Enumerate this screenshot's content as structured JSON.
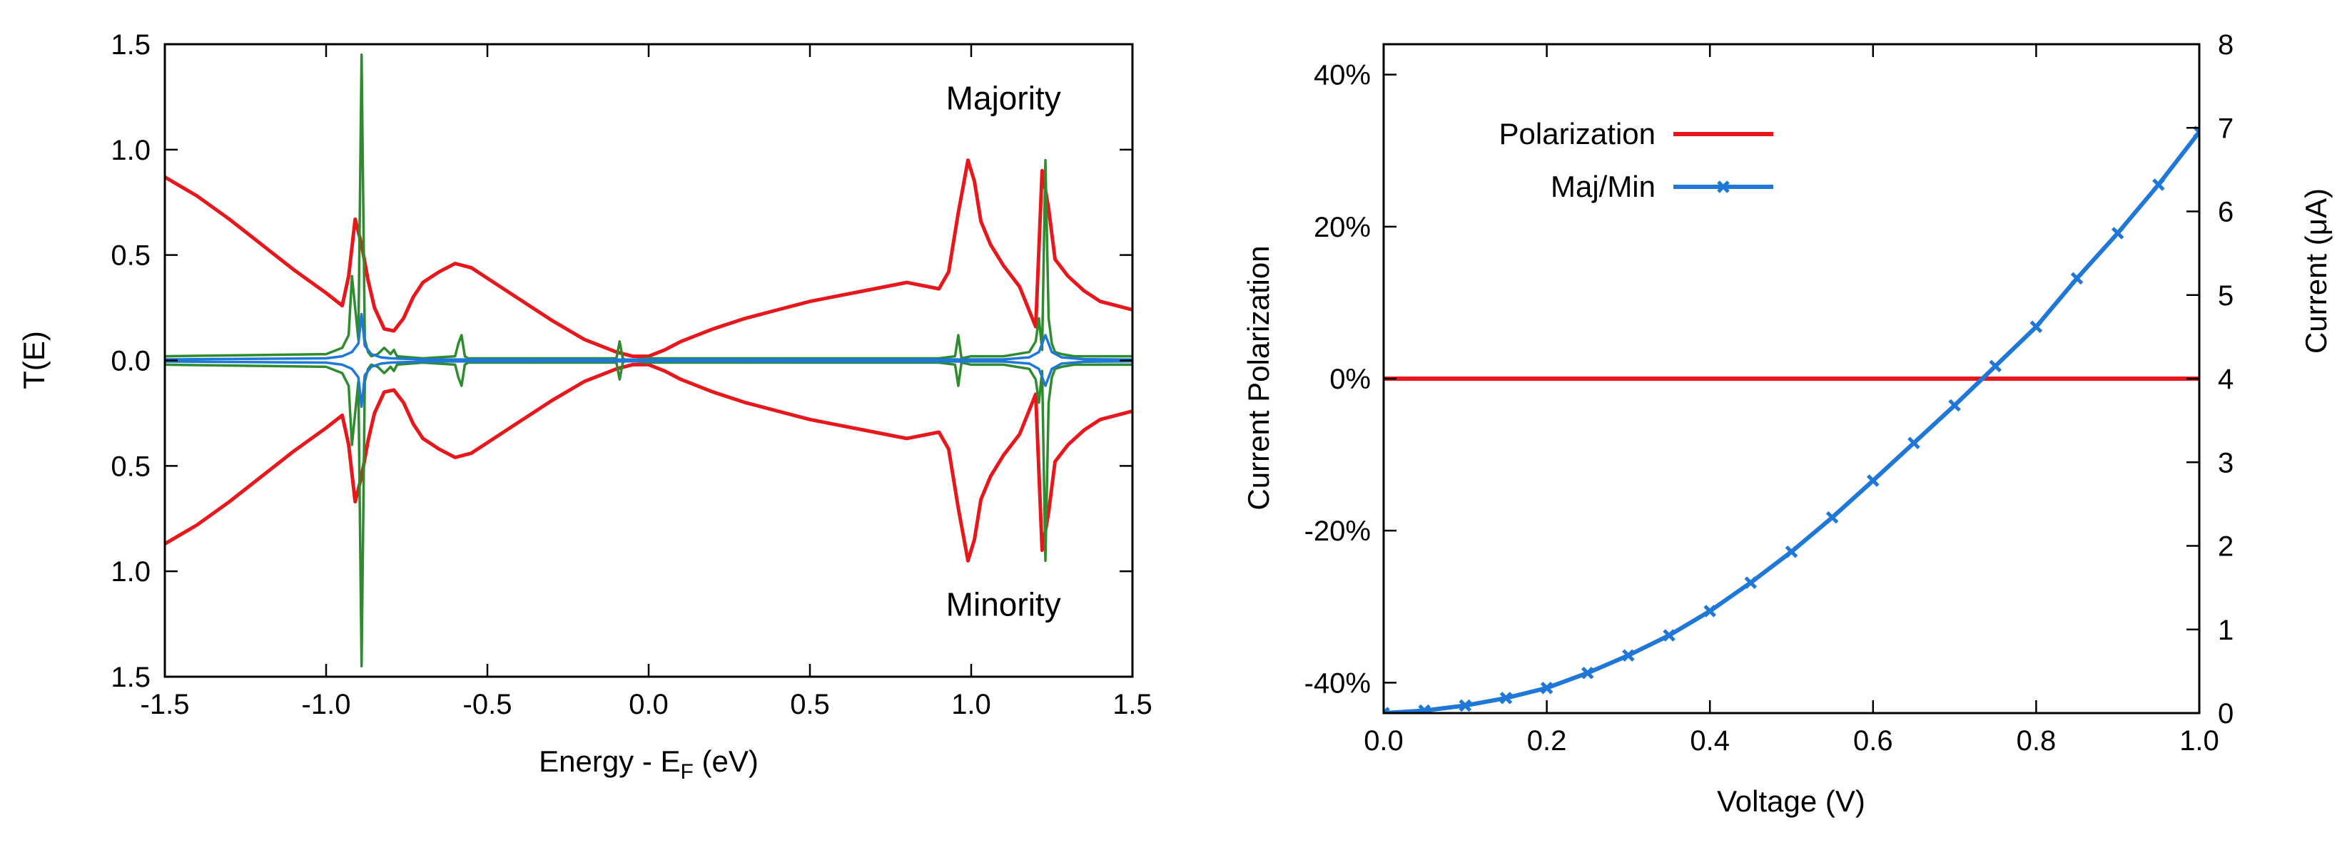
{
  "chart_data": [
    {
      "type": "line",
      "title": "",
      "xlabel_main": "Energy - E",
      "xlabel_sub": "F",
      "xlabel_tail": " (eV)",
      "ylabel": "T(E)",
      "xlim": [
        -1.5,
        1.5
      ],
      "ylim": [
        -1.5,
        1.5
      ],
      "x_ticks": [
        "-1.5",
        "-1.0",
        "-0.5",
        "0.0",
        "0.5",
        "1.0",
        "1.5"
      ],
      "y_ticks": [
        {
          "v": 1.5,
          "label": "1.5"
        },
        {
          "v": 1.0,
          "label": "1.0"
        },
        {
          "v": 0.5,
          "label": "0.5"
        },
        {
          "v": 0.0,
          "label": "0.0"
        },
        {
          "v": -0.5,
          "label": "0.5"
        },
        {
          "v": -1.0,
          "label": "1.0"
        },
        {
          "v": -1.5,
          "label": "1.5"
        }
      ],
      "annotations": [
        {
          "text": "Majority",
          "x": 1.1,
          "y": 1.19
        },
        {
          "text": "Minority",
          "x": 1.1,
          "y": -1.21
        }
      ],
      "grid": false,
      "series": [
        {
          "color": "#e8171b",
          "mirror": true,
          "x": [
            -1.5,
            -1.4,
            -1.3,
            -1.2,
            -1.1,
            -1.0,
            -0.95,
            -0.93,
            -0.91,
            -0.89,
            -0.87,
            -0.85,
            -0.82,
            -0.79,
            -0.76,
            -0.73,
            -0.7,
            -0.65,
            -0.6,
            -0.55,
            -0.5,
            -0.4,
            -0.3,
            -0.2,
            -0.1,
            -0.05,
            0.0,
            0.05,
            0.1,
            0.2,
            0.3,
            0.4,
            0.5,
            0.6,
            0.7,
            0.8,
            0.9,
            0.93,
            0.96,
            0.99,
            1.01,
            1.03,
            1.06,
            1.1,
            1.15,
            1.2,
            1.22,
            1.24,
            1.26,
            1.3,
            1.35,
            1.4,
            1.45,
            1.5
          ],
          "y": [
            0.87,
            0.78,
            0.67,
            0.55,
            0.43,
            0.32,
            0.26,
            0.4,
            0.67,
            0.55,
            0.38,
            0.25,
            0.15,
            0.14,
            0.2,
            0.3,
            0.37,
            0.42,
            0.46,
            0.44,
            0.39,
            0.29,
            0.19,
            0.1,
            0.04,
            0.02,
            0.02,
            0.05,
            0.09,
            0.15,
            0.2,
            0.24,
            0.28,
            0.31,
            0.34,
            0.37,
            0.34,
            0.42,
            0.7,
            0.95,
            0.85,
            0.66,
            0.55,
            0.45,
            0.35,
            0.16,
            0.9,
            0.72,
            0.48,
            0.4,
            0.33,
            0.28,
            0.26,
            0.24
          ]
        },
        {
          "color": "#2e8b2e",
          "mirror": true,
          "x": [
            -1.5,
            -1.0,
            -0.95,
            -0.93,
            -0.92,
            -0.91,
            -0.9,
            -0.89,
            -0.88,
            -0.87,
            -0.86,
            -0.84,
            -0.82,
            -0.8,
            -0.79,
            -0.78,
            -0.7,
            -0.6,
            -0.59,
            -0.58,
            -0.57,
            -0.56,
            -0.5,
            -0.2,
            -0.1,
            -0.09,
            -0.08,
            -0.07,
            0.0,
            0.1,
            0.9,
            0.95,
            0.96,
            0.97,
            1.0,
            1.1,
            1.18,
            1.2,
            1.21,
            1.22,
            1.23,
            1.24,
            1.25,
            1.26,
            1.28,
            1.32,
            1.4,
            1.5
          ],
          "y": [
            0.02,
            0.03,
            0.06,
            0.12,
            0.4,
            0.25,
            0.1,
            1.45,
            0.1,
            0.04,
            0.02,
            0.03,
            0.06,
            0.03,
            0.05,
            0.02,
            0.01,
            0.02,
            0.08,
            0.12,
            0.02,
            0.01,
            0.01,
            0.01,
            0.01,
            0.09,
            0.01,
            0.0,
            0.01,
            0.01,
            0.01,
            0.02,
            0.12,
            0.01,
            0.02,
            0.02,
            0.04,
            0.09,
            0.2,
            0.05,
            0.95,
            0.2,
            0.08,
            0.04,
            0.03,
            0.02,
            0.02,
            0.02
          ]
        },
        {
          "color": "#1f78d8",
          "mirror": true,
          "x": [
            -1.5,
            -1.0,
            -0.95,
            -0.92,
            -0.9,
            -0.89,
            -0.88,
            -0.86,
            -0.83,
            -0.8,
            -0.7,
            -0.3,
            0.0,
            1.1,
            1.18,
            1.21,
            1.23,
            1.25,
            1.28,
            1.35,
            1.5
          ],
          "y": [
            0.005,
            0.01,
            0.02,
            0.04,
            0.08,
            0.22,
            0.07,
            0.03,
            0.015,
            0.01,
            0.005,
            0.004,
            0.004,
            0.005,
            0.015,
            0.04,
            0.12,
            0.04,
            0.015,
            0.006,
            0.004
          ]
        }
      ]
    },
    {
      "type": "line",
      "title": "",
      "xlabel": "Voltage (V)",
      "ylabel": "Current Polarization",
      "y2label": "Current (μA)",
      "xlim": [
        0.0,
        1.0
      ],
      "ylim": [
        -44,
        44
      ],
      "y2lim": [
        0,
        8
      ],
      "x_ticks": [
        "0.0",
        "0.2",
        "0.4",
        "0.6",
        "0.8",
        "1.0"
      ],
      "y_ticks": [
        "40%",
        "20%",
        "0%",
        "-20%",
        "-40%"
      ],
      "y2_ticks": [
        "0",
        "1",
        "2",
        "3",
        "4",
        "5",
        "6",
        "7",
        "8"
      ],
      "legend_position": "top-left",
      "grid": false,
      "series": [
        {
          "name": "Polarization",
          "color": "#e8171b",
          "axis": "left",
          "x": [
            0.0,
            1.0
          ],
          "y": [
            0,
            0
          ]
        },
        {
          "name": "Maj/Min",
          "color": "#1f78d8",
          "axis": "right",
          "marker": "x",
          "x": [
            0.0,
            0.05,
            0.1,
            0.15,
            0.2,
            0.25,
            0.3,
            0.35,
            0.4,
            0.45,
            0.5,
            0.55,
            0.6,
            0.65,
            0.7,
            0.75,
            0.8,
            0.85,
            0.9,
            0.95,
            1.0
          ],
          "y": [
            0.0,
            0.03,
            0.09,
            0.18,
            0.3,
            0.48,
            0.69,
            0.93,
            1.22,
            1.56,
            1.93,
            2.34,
            2.78,
            3.23,
            3.68,
            4.15,
            4.62,
            5.2,
            5.74,
            6.32,
            6.95
          ]
        }
      ]
    }
  ]
}
